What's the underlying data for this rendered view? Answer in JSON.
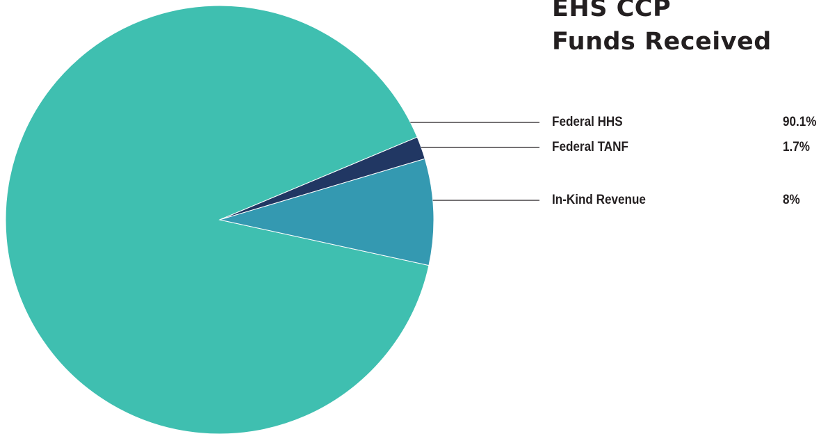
{
  "chart_data": {
    "type": "pie",
    "title": [
      "EHS CCP",
      "Funds Received"
    ],
    "categories": [
      "Federal HHS",
      "Federal TANF",
      "In-Kind Revenue"
    ],
    "values": [
      90.1,
      1.7,
      8
    ],
    "value_labels": [
      "90.1%",
      "1.7%",
      "8%"
    ],
    "colors": [
      "#3fbfb0",
      "#213763",
      "#3499b1"
    ],
    "legend": "right, with leader lines"
  }
}
